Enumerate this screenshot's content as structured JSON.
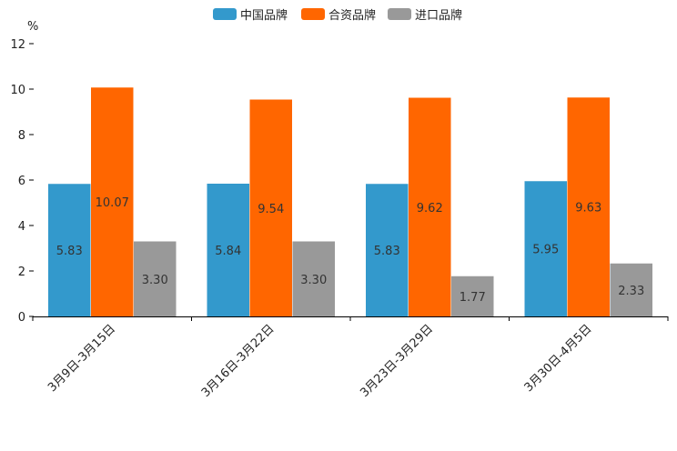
{
  "chart_data": {
    "type": "bar",
    "title": "",
    "ylabel": "%",
    "xlabel": "",
    "ylim": [
      0,
      12
    ],
    "yticks": [
      0,
      2,
      4,
      6,
      8,
      10,
      12
    ],
    "categories": [
      "3月9日-3月15日",
      "3月16日-3月22日",
      "3月23日-3月29日",
      "3月30日-4月5日"
    ],
    "series": [
      {
        "name": "中国品牌",
        "color": "#3399cc",
        "values": [
          5.83,
          5.84,
          5.83,
          5.95
        ],
        "labels": [
          "5.83",
          "5.84",
          "5.83",
          "5.95"
        ]
      },
      {
        "name": "合资品牌",
        "color": "#ff6600",
        "values": [
          10.07,
          9.54,
          9.62,
          9.63
        ],
        "labels": [
          "10.07",
          "9.54",
          "9.62",
          "9.63"
        ]
      },
      {
        "name": "进口品牌",
        "color": "#999999",
        "values": [
          3.3,
          3.3,
          1.77,
          2.33
        ],
        "labels": [
          "3.30",
          "3.30",
          "1.77",
          "2.33"
        ]
      }
    ],
    "legend_position": "top-center",
    "grid": false
  }
}
